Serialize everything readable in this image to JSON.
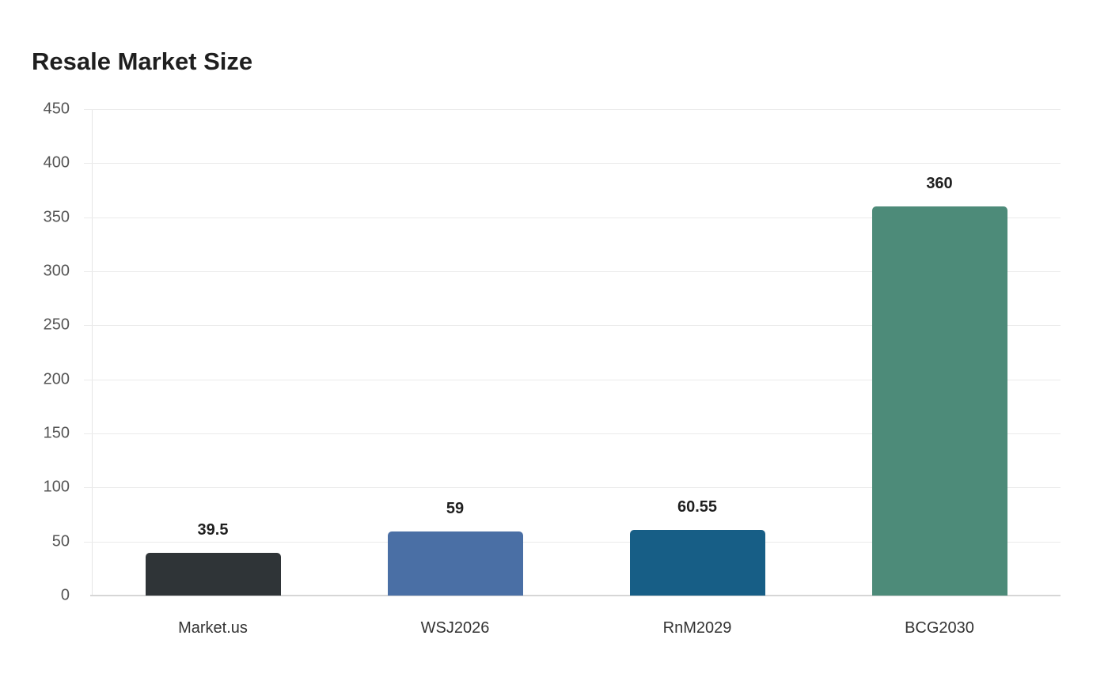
{
  "chart_data": {
    "type": "bar",
    "title": "Resale Market Size",
    "xlabel": "",
    "ylabel": "",
    "categories": [
      "Market.us",
      "WSJ2026",
      "RnM2029",
      "BCG2030"
    ],
    "values": [
      39.5,
      59,
      60.55,
      360
    ],
    "value_labels": [
      "39.5",
      "59",
      "60.55",
      "360"
    ],
    "colors": [
      "#2f3437",
      "#4a6fa5",
      "#175e86",
      "#4d8b79"
    ],
    "ylim": [
      0,
      450
    ],
    "yticks": [
      "0",
      "50",
      "100",
      "150",
      "200",
      "250",
      "300",
      "350",
      "400",
      "450"
    ],
    "grid": true,
    "legend": "none"
  }
}
